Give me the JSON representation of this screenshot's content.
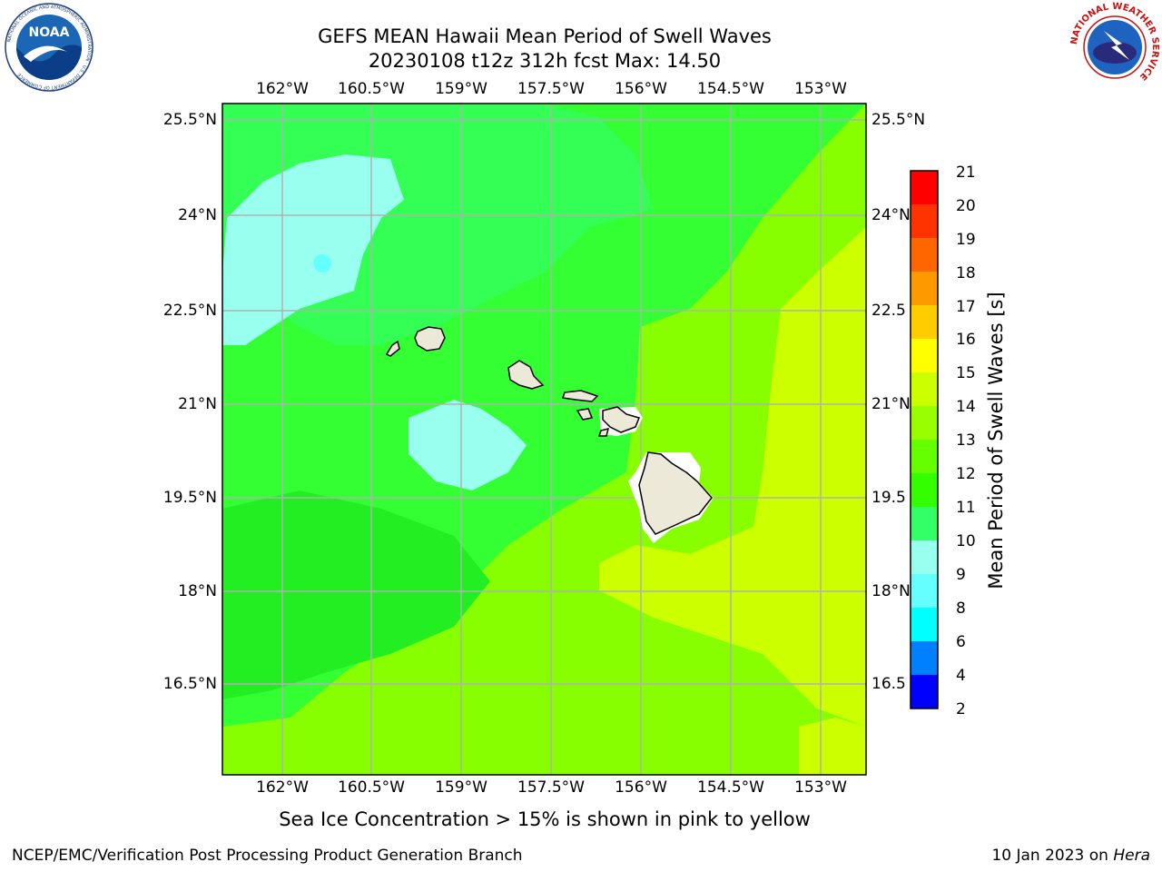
{
  "header": {
    "title_line1": "GEFS MEAN Hawaii Mean Period of Swell Waves",
    "title_line2": "20230108 t12z 312h fcst   Max: 14.50"
  },
  "logos": {
    "left_text": "NOAA",
    "left_ring_text": "NATIONAL OCEANIC AND ATMOSPHERIC ADMINISTRATION · U.S. DEPARTMENT OF COMMERCE",
    "right_ring_text": "NATIONAL WEATHER SERVICE"
  },
  "map": {
    "lon_labels": [
      "162°W",
      "160.5°W",
      "159°W",
      "157.5°W",
      "156°W",
      "154.5°W",
      "153°W"
    ],
    "lat_labels": [
      "25.5°N",
      "24°N",
      "22.5°N",
      "21°N",
      "19.5°N",
      "18°N",
      "16.5°N"
    ],
    "lat_labels_right": [
      "25.5°N",
      "24°N",
      "22.5",
      "21°N",
      "19.5",
      "18°N",
      "16.5"
    ],
    "land_color": "#ece9d8",
    "grid_color": "#b0b0b0"
  },
  "colorbar": {
    "label": "Mean Period of Swell Waves [s]",
    "ticks": [
      "21",
      "20",
      "19",
      "18",
      "17",
      "16",
      "15",
      "14",
      "13",
      "12",
      "11",
      "10",
      "9",
      "8",
      "6",
      "4",
      "2"
    ],
    "colors": [
      "#ff0000",
      "#ff3300",
      "#ff6600",
      "#ff9900",
      "#ffcc00",
      "#ffff00",
      "#ccff00",
      "#99ff00",
      "#66ff00",
      "#33ff00",
      "#33ff66",
      "#99ffee",
      "#66ffff",
      "#00ffff",
      "#0080ff",
      "#0000ff"
    ]
  },
  "subtitle": "Sea Ice Concentration > 15% is shown in pink to yellow",
  "footer": {
    "left": "NCEP/EMC/Verification Post Processing Product Generation Branch",
    "date": "10 Jan 2023 on ",
    "host": "Hera"
  }
}
